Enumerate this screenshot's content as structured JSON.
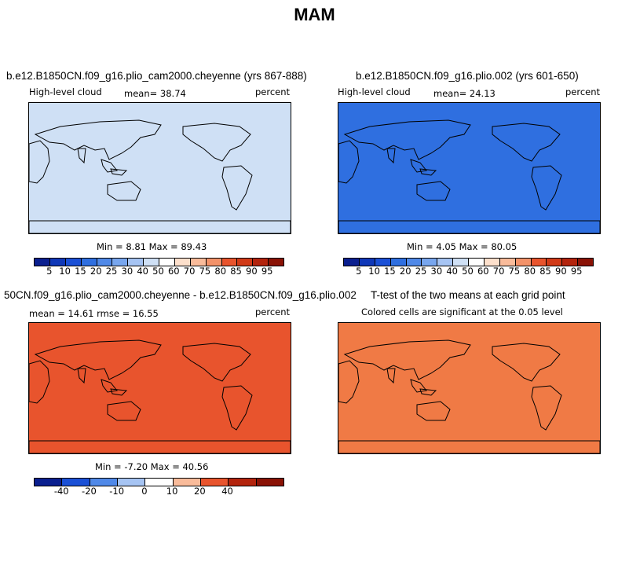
{
  "figure": {
    "title": "MAM"
  },
  "panels": [
    {
      "title": "b.e12.B1850CN.f09_g16.plio_cam2000.cheyenne (yrs 867-888)",
      "variable": "High-level cloud",
      "stat": "mean=  38.74",
      "units": "percent",
      "minmax": "Min =   8.81  Max =  89.43",
      "fill": "#cfe0f5"
    },
    {
      "title": "b.e12.B1850CN.f09_g16.plio.002 (yrs 601-650)",
      "variable": "High-level cloud",
      "stat": "mean=  24.13",
      "units": "percent",
      "minmax": "Min =   4.05  Max =  80.05",
      "fill": "#2f6fe0"
    },
    {
      "title": "50CN.f09_g16.plio_cam2000.cheyenne - b.e12.B1850CN.f09_g16.plio.002",
      "variable": "mean =  14.61     rmse =  16.55",
      "stat": "",
      "units": "percent",
      "minmax": "Min =  -7.20  Max =  40.56",
      "fill": "#e8542d"
    },
    {
      "title": "T-test of the two means at each grid point",
      "variable": "",
      "stat": "Colored cells are significant at the 0.05 level",
      "units": "",
      "minmax": "",
      "fill": "#f07a45"
    }
  ],
  "colorbars": {
    "abs": {
      "labels": [
        "5",
        "10",
        "15",
        "20",
        "25",
        "30",
        "40",
        "50",
        "60",
        "70",
        "75",
        "80",
        "85",
        "90",
        "95"
      ],
      "colors": [
        "#0a1f8f",
        "#0f38b8",
        "#1a50d6",
        "#2f6fe0",
        "#5089e8",
        "#78a6ee",
        "#a6c4f3",
        "#cfe0f5",
        "#ffffff",
        "#fde0cc",
        "#f9bb9a",
        "#f39269",
        "#e8542d",
        "#d13a17",
        "#b3240d",
        "#8a1205"
      ]
    },
    "diff": {
      "labels": [
        "-40",
        "-20",
        "-10",
        "0",
        "10",
        "20",
        "40"
      ],
      "colors": [
        "#0a1f8f",
        "#1a50d6",
        "#5089e8",
        "#a6c4f3",
        "#ffffff",
        "#f9bb9a",
        "#e8542d",
        "#b3240d",
        "#8a1205"
      ]
    }
  }
}
